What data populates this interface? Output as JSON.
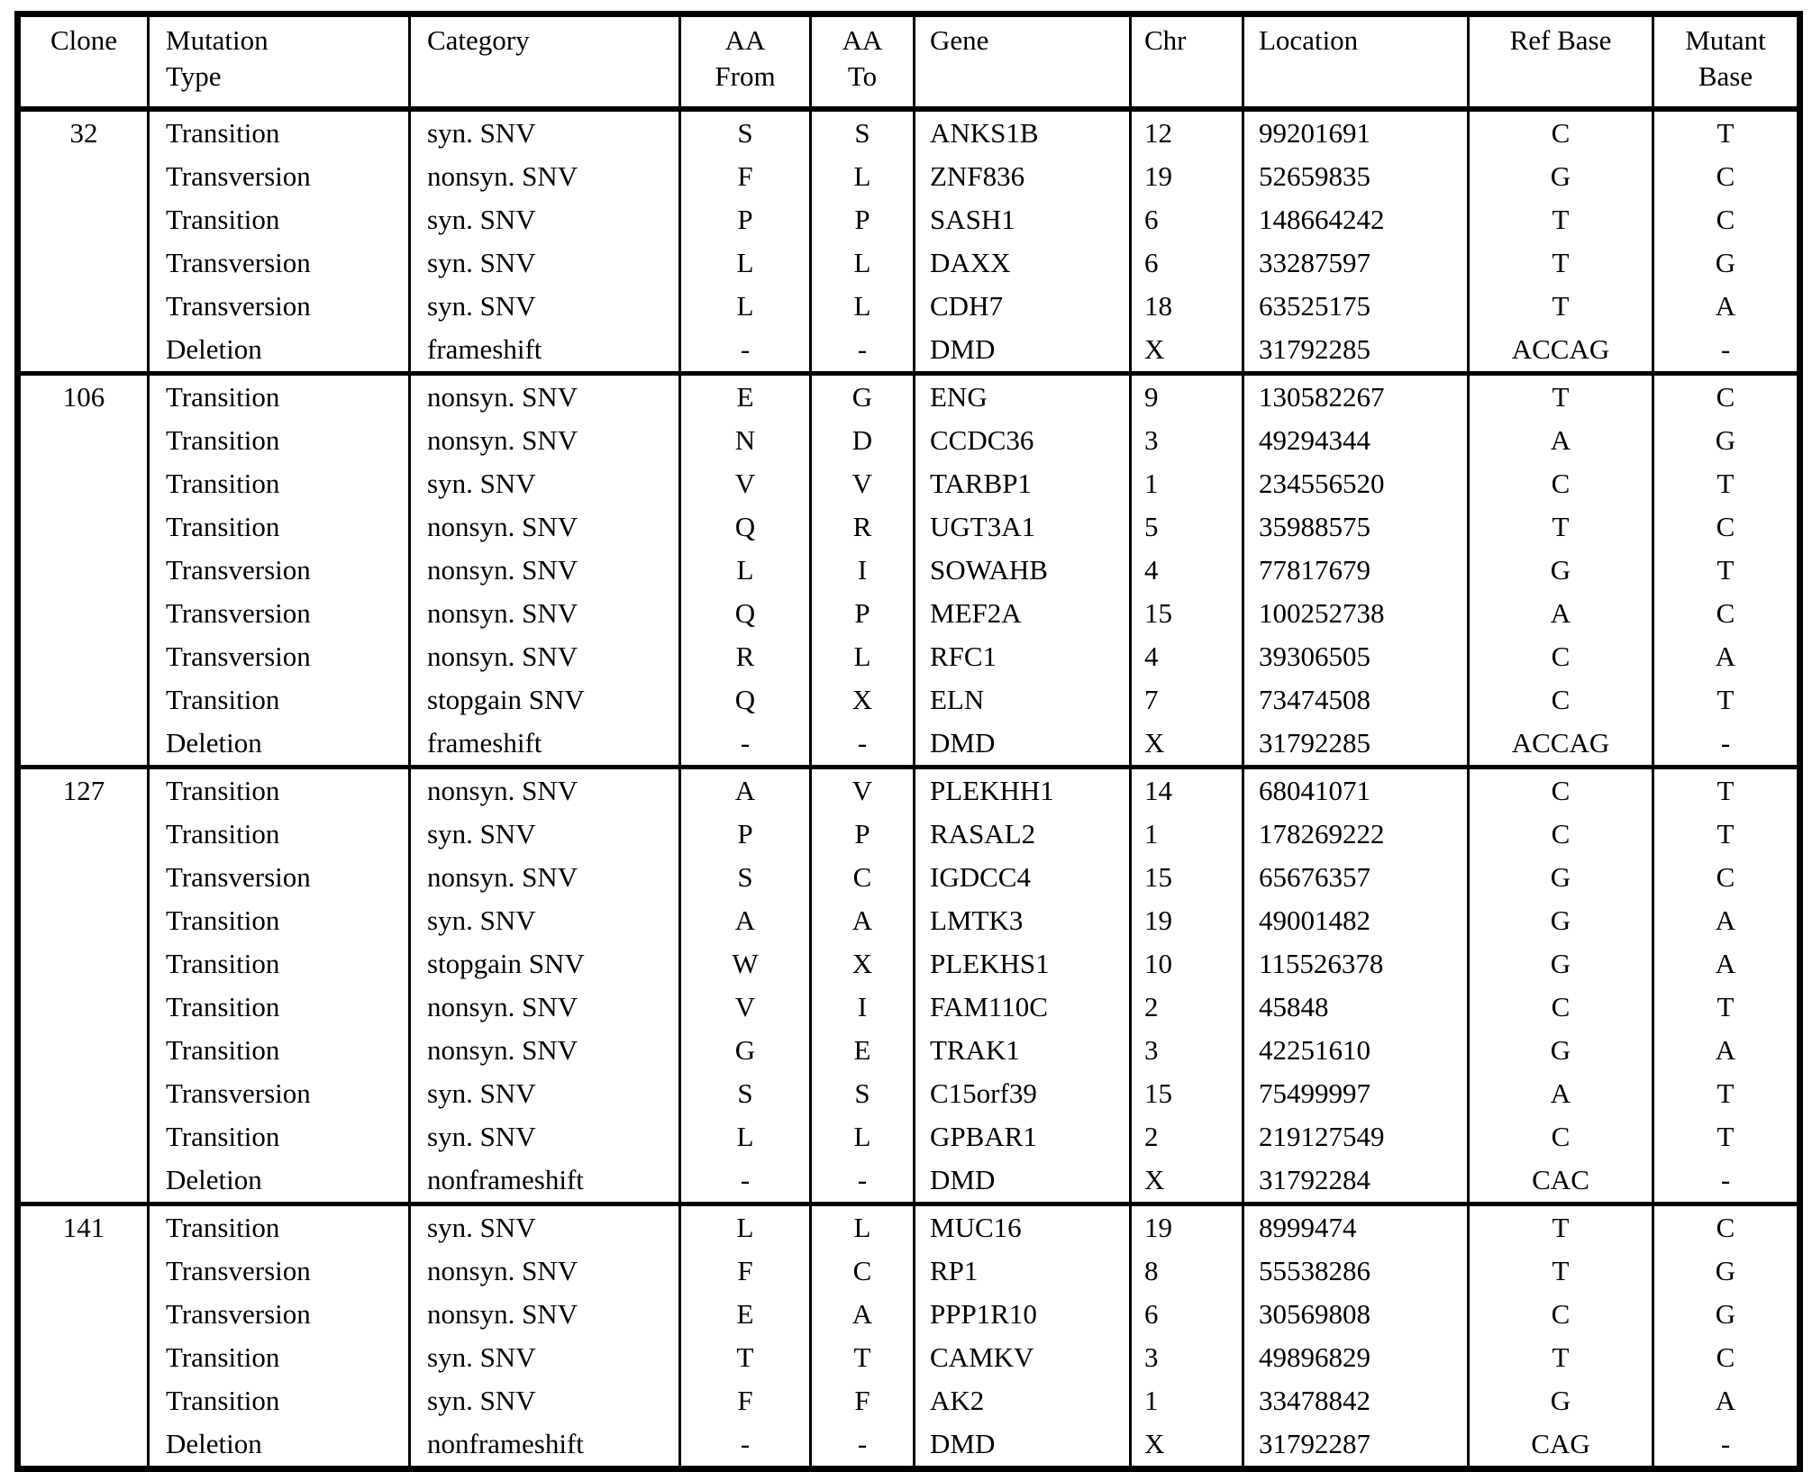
{
  "table": {
    "columns": [
      {
        "key": "clone",
        "label": "Clone"
      },
      {
        "key": "mutation_type",
        "label": "Mutation\nType"
      },
      {
        "key": "category",
        "label": "Category"
      },
      {
        "key": "aa_from",
        "label": "AA\nFrom"
      },
      {
        "key": "aa_to",
        "label": "AA\nTo"
      },
      {
        "key": "gene",
        "label": "Gene"
      },
      {
        "key": "chr",
        "label": "Chr"
      },
      {
        "key": "location",
        "label": "Location"
      },
      {
        "key": "ref_base",
        "label": "Ref Base"
      },
      {
        "key": "mutant_base",
        "label": "Mutant\nBase"
      }
    ],
    "groups": [
      {
        "clone": "32",
        "rows": [
          {
            "mutation_type": "Transition",
            "category": "syn. SNV",
            "aa_from": "S",
            "aa_to": "S",
            "gene": "ANKS1B",
            "chr": "12",
            "location": "99201691",
            "ref_base": "C",
            "mutant_base": "T"
          },
          {
            "mutation_type": "Transversion",
            "category": "nonsyn. SNV",
            "aa_from": "F",
            "aa_to": "L",
            "gene": "ZNF836",
            "chr": "19",
            "location": "52659835",
            "ref_base": "G",
            "mutant_base": "C"
          },
          {
            "mutation_type": "Transition",
            "category": "syn. SNV",
            "aa_from": "P",
            "aa_to": "P",
            "gene": "SASH1",
            "chr": "6",
            "location": "148664242",
            "ref_base": "T",
            "mutant_base": "C"
          },
          {
            "mutation_type": "Transversion",
            "category": "syn. SNV",
            "aa_from": "L",
            "aa_to": "L",
            "gene": "DAXX",
            "chr": "6",
            "location": "33287597",
            "ref_base": "T",
            "mutant_base": "G"
          },
          {
            "mutation_type": "Transversion",
            "category": "syn. SNV",
            "aa_from": "L",
            "aa_to": "L",
            "gene": "CDH7",
            "chr": "18",
            "location": "63525175",
            "ref_base": "T",
            "mutant_base": "A"
          },
          {
            "mutation_type": "Deletion",
            "category": "frameshift",
            "aa_from": "-",
            "aa_to": "-",
            "gene": "DMD",
            "chr": "X",
            "location": "31792285",
            "ref_base": "ACCAG",
            "mutant_base": "-"
          }
        ]
      },
      {
        "clone": "106",
        "rows": [
          {
            "mutation_type": "Transition",
            "category": "nonsyn. SNV",
            "aa_from": "E",
            "aa_to": "G",
            "gene": "ENG",
            "chr": "9",
            "location": "130582267",
            "ref_base": "T",
            "mutant_base": "C"
          },
          {
            "mutation_type": "Transition",
            "category": "nonsyn. SNV",
            "aa_from": "N",
            "aa_to": "D",
            "gene": "CCDC36",
            "chr": "3",
            "location": "49294344",
            "ref_base": "A",
            "mutant_base": "G"
          },
          {
            "mutation_type": "Transition",
            "category": "syn. SNV",
            "aa_from": "V",
            "aa_to": "V",
            "gene": "TARBP1",
            "chr": "1",
            "location": "234556520",
            "ref_base": "C",
            "mutant_base": "T"
          },
          {
            "mutation_type": "Transition",
            "category": "nonsyn. SNV",
            "aa_from": "Q",
            "aa_to": "R",
            "gene": "UGT3A1",
            "chr": "5",
            "location": "35988575",
            "ref_base": "T",
            "mutant_base": "C"
          },
          {
            "mutation_type": "Transversion",
            "category": "nonsyn. SNV",
            "aa_from": "L",
            "aa_to": "I",
            "gene": "SOWAHB",
            "chr": "4",
            "location": "77817679",
            "ref_base": "G",
            "mutant_base": "T"
          },
          {
            "mutation_type": "Transversion",
            "category": "nonsyn. SNV",
            "aa_from": "Q",
            "aa_to": "P",
            "gene": "MEF2A",
            "chr": "15",
            "location": "100252738",
            "ref_base": "A",
            "mutant_base": "C"
          },
          {
            "mutation_type": "Transversion",
            "category": "nonsyn. SNV",
            "aa_from": "R",
            "aa_to": "L",
            "gene": "RFC1",
            "chr": "4",
            "location": "39306505",
            "ref_base": "C",
            "mutant_base": "A"
          },
          {
            "mutation_type": "Transition",
            "category": "stopgain SNV",
            "aa_from": "Q",
            "aa_to": "X",
            "gene": "ELN",
            "chr": "7",
            "location": "73474508",
            "ref_base": "C",
            "mutant_base": "T"
          },
          {
            "mutation_type": "Deletion",
            "category": "frameshift",
            "aa_from": "-",
            "aa_to": "-",
            "gene": "DMD",
            "chr": "X",
            "location": "31792285",
            "ref_base": "ACCAG",
            "mutant_base": "-"
          }
        ]
      },
      {
        "clone": "127",
        "rows": [
          {
            "mutation_type": "Transition",
            "category": "nonsyn. SNV",
            "aa_from": "A",
            "aa_to": "V",
            "gene": "PLEKHH1",
            "chr": "14",
            "location": "68041071",
            "ref_base": "C",
            "mutant_base": "T"
          },
          {
            "mutation_type": "Transition",
            "category": "syn. SNV",
            "aa_from": "P",
            "aa_to": "P",
            "gene": "RASAL2",
            "chr": "1",
            "location": "178269222",
            "ref_base": "C",
            "mutant_base": "T"
          },
          {
            "mutation_type": "Transversion",
            "category": "nonsyn. SNV",
            "aa_from": "S",
            "aa_to": "C",
            "gene": "IGDCC4",
            "chr": "15",
            "location": "65676357",
            "ref_base": "G",
            "mutant_base": "C"
          },
          {
            "mutation_type": "Transition",
            "category": "syn. SNV",
            "aa_from": "A",
            "aa_to": "A",
            "gene": "LMTK3",
            "chr": "19",
            "location": "49001482",
            "ref_base": "G",
            "mutant_base": "A"
          },
          {
            "mutation_type": "Transition",
            "category": "stopgain SNV",
            "aa_from": "W",
            "aa_to": "X",
            "gene": "PLEKHS1",
            "chr": "10",
            "location": "115526378",
            "ref_base": "G",
            "mutant_base": "A"
          },
          {
            "mutation_type": "Transition",
            "category": "nonsyn. SNV",
            "aa_from": "V",
            "aa_to": "I",
            "gene": "FAM110C",
            "chr": "2",
            "location": "45848",
            "ref_base": "C",
            "mutant_base": "T"
          },
          {
            "mutation_type": "Transition",
            "category": "nonsyn. SNV",
            "aa_from": "G",
            "aa_to": "E",
            "gene": "TRAK1",
            "chr": "3",
            "location": "42251610",
            "ref_base": "G",
            "mutant_base": "A"
          },
          {
            "mutation_type": "Transversion",
            "category": "syn. SNV",
            "aa_from": "S",
            "aa_to": "S",
            "gene": "C15orf39",
            "chr": "15",
            "location": "75499997",
            "ref_base": "A",
            "mutant_base": "T"
          },
          {
            "mutation_type": "Transition",
            "category": "syn. SNV",
            "aa_from": "L",
            "aa_to": "L",
            "gene": "GPBAR1",
            "chr": "2",
            "location": "219127549",
            "ref_base": "C",
            "mutant_base": "T"
          },
          {
            "mutation_type": "Deletion",
            "category": "nonframeshift",
            "aa_from": "-",
            "aa_to": "-",
            "gene": "DMD",
            "chr": "X",
            "location": "31792284",
            "ref_base": "CAC",
            "mutant_base": "-"
          }
        ]
      },
      {
        "clone": "141",
        "rows": [
          {
            "mutation_type": "Transition",
            "category": "syn. SNV",
            "aa_from": "L",
            "aa_to": "L",
            "gene": "MUC16",
            "chr": "19",
            "location": "8999474",
            "ref_base": "T",
            "mutant_base": "C"
          },
          {
            "mutation_type": "Transversion",
            "category": "nonsyn. SNV",
            "aa_from": "F",
            "aa_to": "C",
            "gene": "RP1",
            "chr": "8",
            "location": "55538286",
            "ref_base": "T",
            "mutant_base": "G"
          },
          {
            "mutation_type": "Transversion",
            "category": "nonsyn. SNV",
            "aa_from": "E",
            "aa_to": "A",
            "gene": "PPP1R10",
            "chr": "6",
            "location": "30569808",
            "ref_base": "C",
            "mutant_base": "G"
          },
          {
            "mutation_type": "Transition",
            "category": "syn. SNV",
            "aa_from": "T",
            "aa_to": "T",
            "gene": "CAMKV",
            "chr": "3",
            "location": "49896829",
            "ref_base": "T",
            "mutant_base": "C"
          },
          {
            "mutation_type": "Transition",
            "category": "syn. SNV",
            "aa_from": "F",
            "aa_to": "F",
            "gene": "AK2",
            "chr": "1",
            "location": "33478842",
            "ref_base": "G",
            "mutant_base": "A"
          },
          {
            "mutation_type": "Deletion",
            "category": "nonframeshift",
            "aa_from": "-",
            "aa_to": "-",
            "gene": "DMD",
            "chr": "X",
            "location": "31792287",
            "ref_base": "CAG",
            "mutant_base": "-"
          }
        ]
      }
    ]
  }
}
